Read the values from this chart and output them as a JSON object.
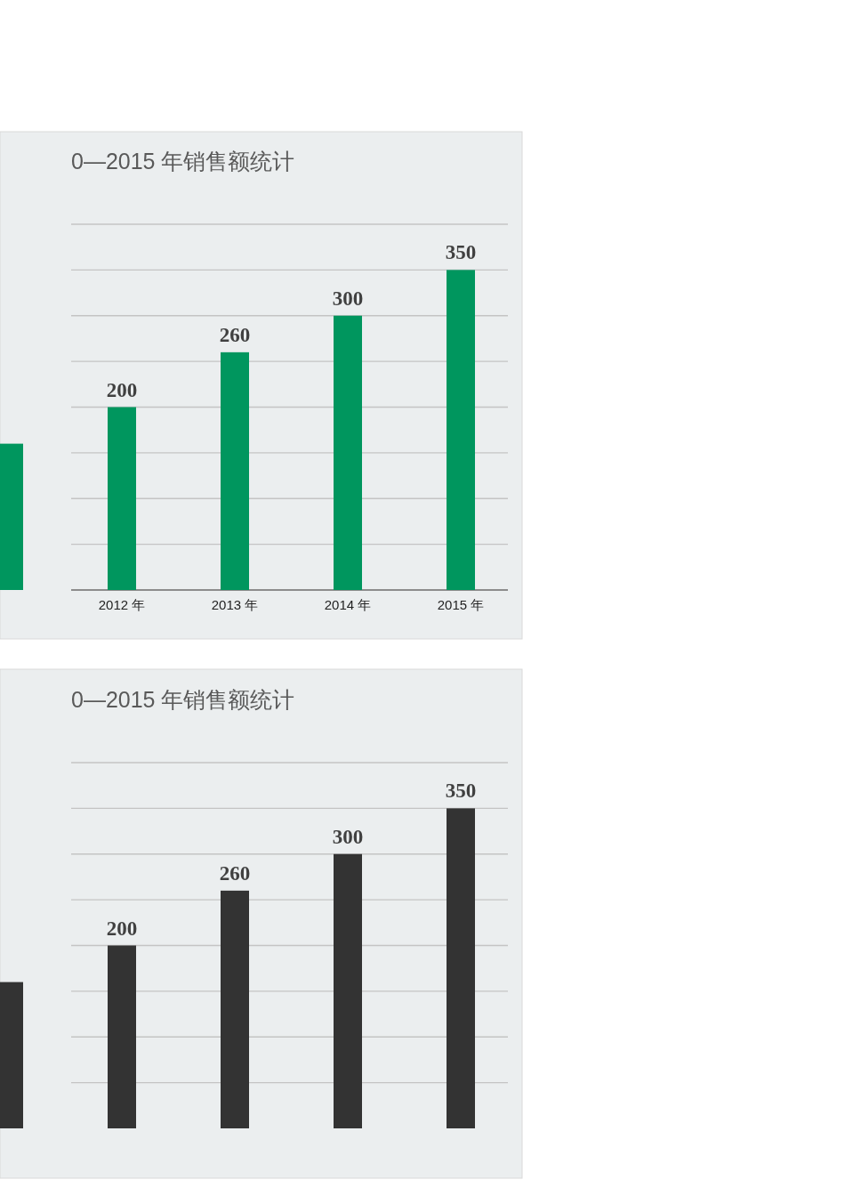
{
  "chart_data": [
    {
      "type": "bar",
      "title": "0—2015 年销售额统计",
      "categories": [
        null,
        "2012 年",
        "2013 年",
        "2014 年",
        "2015 年"
      ],
      "series": [
        {
          "color": "#00965e",
          "values": [
            160,
            200,
            260,
            300,
            350
          ],
          "value_labels": [
            null,
            "200",
            "260",
            "300",
            "350"
          ]
        }
      ],
      "ylim": [
        0,
        400
      ],
      "yticks": [
        {
          "value": 0,
          "label": null
        },
        {
          "value": 50,
          "label": null
        },
        {
          "value": 100,
          "label": null
        },
        {
          "value": 150,
          "label": null
        },
        {
          "value": 200,
          "label": null
        },
        {
          "value": 250,
          "label": null
        },
        {
          "value": 300,
          "label": null
        },
        {
          "value": 350,
          "label": null
        },
        {
          "value": 400,
          "label": null
        }
      ],
      "grid": "y",
      "tick_labels": "x"
    },
    {
      "type": "bar",
      "title": "0—2015 年销售额统计",
      "categories": [
        null,
        null,
        null,
        null,
        null
      ],
      "series": [
        {
          "color": "#333333",
          "values": [
            160,
            200,
            260,
            300,
            350
          ],
          "value_labels": [
            null,
            "200",
            "260",
            "300",
            "350"
          ]
        }
      ],
      "ylim": [
        0,
        400
      ],
      "yticks": [
        {
          "value": 50,
          "label": null
        },
        {
          "value": 100,
          "label": null
        },
        {
          "value": 150,
          "label": null
        },
        {
          "value": 200,
          "label": null
        },
        {
          "value": 250,
          "label": null
        },
        {
          "value": 300,
          "label": null
        },
        {
          "value": 350,
          "label": null
        },
        {
          "value": 400,
          "label": null
        }
      ],
      "grid": "y",
      "tick_labels": false
    }
  ]
}
